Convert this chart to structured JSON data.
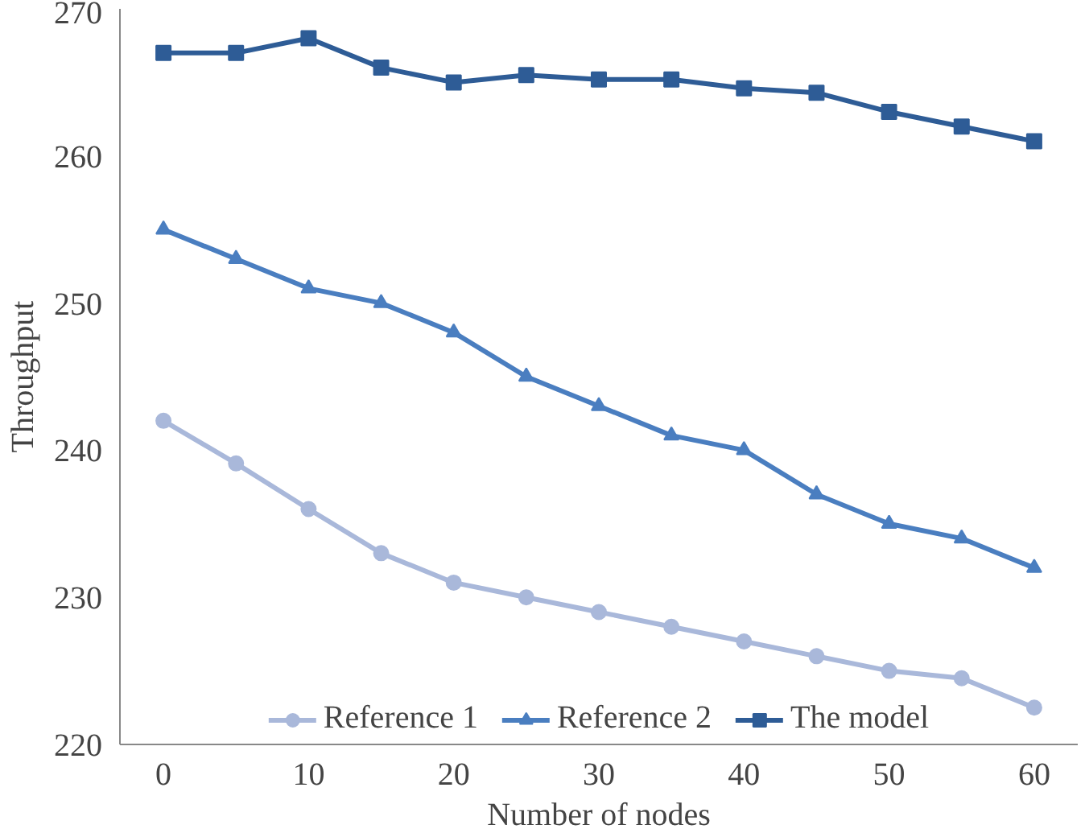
{
  "chart_data": {
    "type": "line",
    "xlabel": "Number of nodes",
    "ylabel": "Throughput",
    "x": [
      0,
      5,
      10,
      15,
      20,
      25,
      30,
      35,
      40,
      45,
      50,
      55,
      60
    ],
    "xlim": [
      -3,
      63
    ],
    "xticks": [
      0,
      10,
      20,
      30,
      40,
      50,
      60
    ],
    "ylim": [
      220,
      270
    ],
    "yticks": [
      220,
      230,
      240,
      250,
      260,
      270
    ],
    "grid": false,
    "legend": "bottom",
    "series": [
      {
        "name": "Reference 1",
        "color": "#a9b8da",
        "marker": "circle",
        "values": [
          242,
          239.1,
          236,
          233,
          231,
          230,
          229,
          228,
          227,
          226,
          225,
          224.5,
          222.5
        ]
      },
      {
        "name": "Reference 2",
        "color": "#4a7ec0",
        "marker": "triangle",
        "values": [
          255,
          253,
          251,
          250,
          248,
          245,
          243,
          241,
          240,
          237,
          235,
          234,
          232
        ]
      },
      {
        "name": "The model",
        "color": "#2e5c96",
        "marker": "square",
        "values": [
          267,
          267,
          268,
          266,
          265,
          265.5,
          265.2,
          265.2,
          264.6,
          264.3,
          263,
          262,
          261
        ]
      }
    ]
  }
}
